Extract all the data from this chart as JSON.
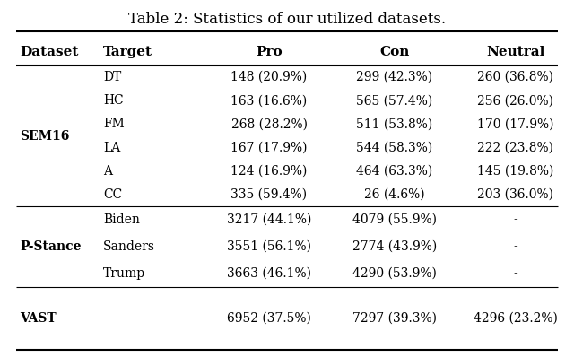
{
  "title": "Table 2: Statistics of our utilized datasets.",
  "col_headers": [
    "Dataset",
    "Target",
    "Pro",
    "Con",
    "Neutral"
  ],
  "rows": [
    [
      "SEM16",
      "DT",
      "148 (20.9%)",
      "299 (42.3%)",
      "260 (36.8%)"
    ],
    [
      "SEM16",
      "HC",
      "163 (16.6%)",
      "565 (57.4%)",
      "256 (26.0%)"
    ],
    [
      "SEM16",
      "FM",
      "268 (28.2%)",
      "511 (53.8%)",
      "170 (17.9%)"
    ],
    [
      "SEM16",
      "LA",
      "167 (17.9%)",
      "544 (58.3%)",
      "222 (23.8%)"
    ],
    [
      "SEM16",
      "A",
      "124 (16.9%)",
      "464 (63.3%)",
      "145 (19.8%)"
    ],
    [
      "SEM16",
      "CC",
      "335 (59.4%)",
      "26 (4.6%)",
      "203 (36.0%)"
    ],
    [
      "P-Stance",
      "Biden",
      "3217 (44.1%)",
      "4079 (55.9%)",
      "-"
    ],
    [
      "P-Stance",
      "Sanders",
      "3551 (56.1%)",
      "2774 (43.9%)",
      "-"
    ],
    [
      "P-Stance",
      "Trump",
      "3663 (46.1%)",
      "4290 (53.9%)",
      "-"
    ],
    [
      "VAST",
      "-",
      "6952 (37.5%)",
      "7297 (39.3%)",
      "4296 (23.2%)"
    ]
  ]
}
